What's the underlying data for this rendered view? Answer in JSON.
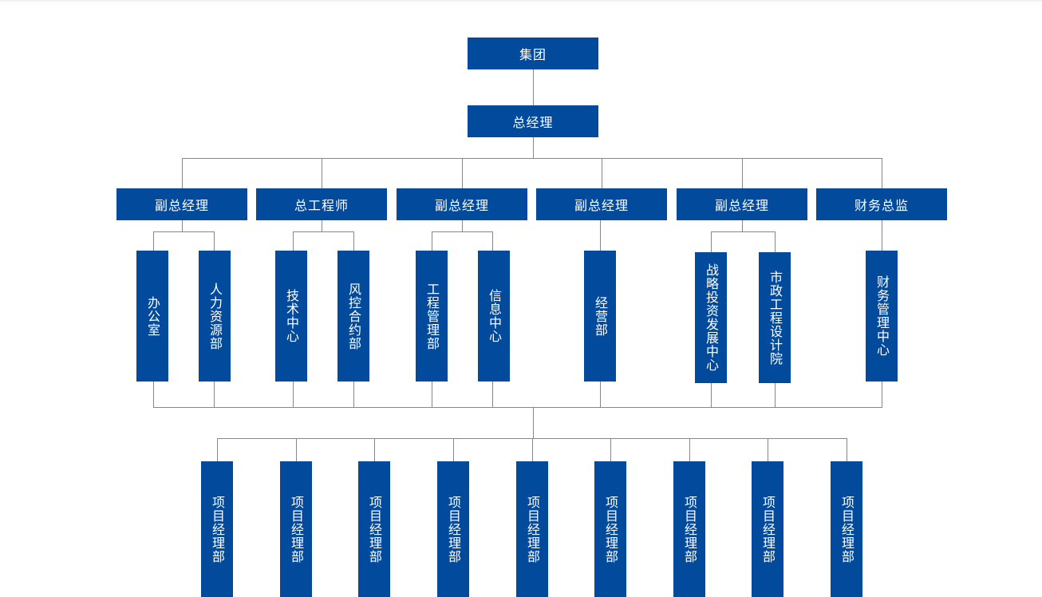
{
  "colors": {
    "box": "#024a9c",
    "text": "#ffffff",
    "line": "#888888"
  },
  "root": "集团",
  "general_manager": "总经理",
  "executives": [
    "副总经理",
    "总工程师",
    "副总经理",
    "副总经理",
    "副总经理",
    "财务总监"
  ],
  "departments": [
    "办公室",
    "人力资源部",
    "技术中心",
    "风控合约部",
    "工程管理部",
    "信息中心",
    "经营部",
    "战略投资发展中心",
    "市政工程设计院",
    "财务管理中心"
  ],
  "projects": [
    "项目经理部",
    "项目经理部",
    "项目经理部",
    "项目经理部",
    "项目经理部",
    "项目经理部",
    "项目经理部",
    "项目经理部",
    "项目经理部"
  ]
}
